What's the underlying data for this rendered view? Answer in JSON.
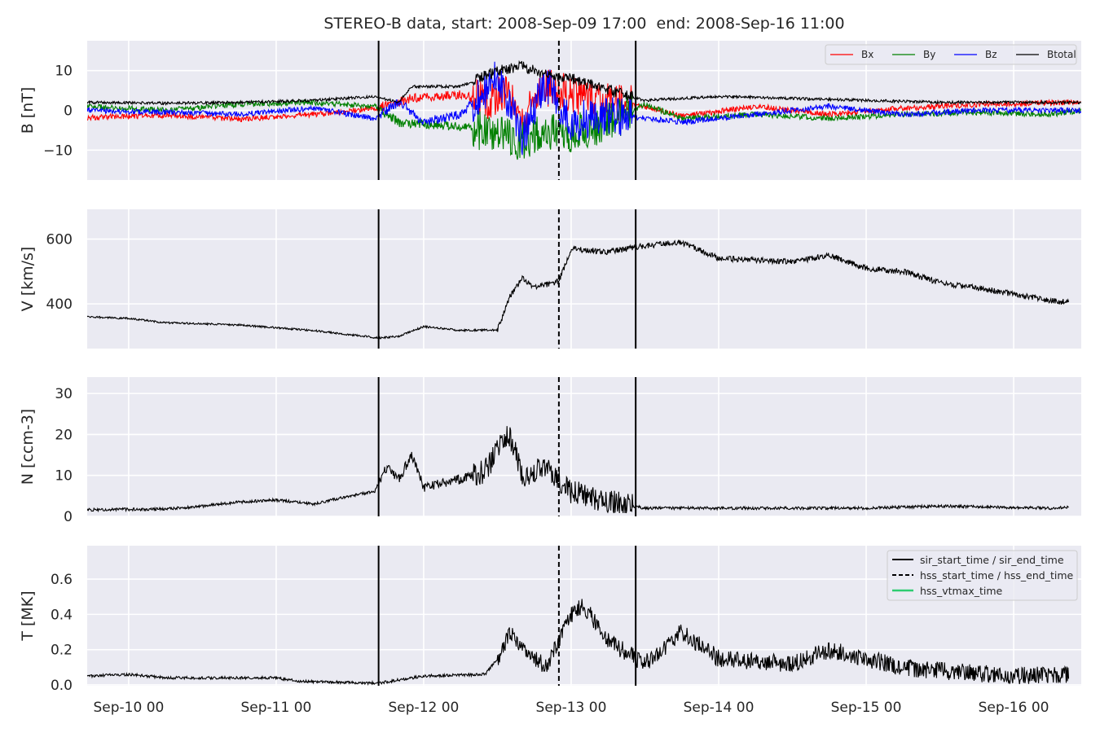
{
  "title": "STEREO-B data, start: 2008-Sep-09 17:00  end: 2008-Sep-16 11:00",
  "colors": {
    "panel_bg": "#eaeaf2",
    "grid": "#ffffff",
    "bx": "#ff0000",
    "by": "#008000",
    "bz": "#0000ff",
    "btotal": "#000000",
    "vtmax": "#2ecc71"
  },
  "chart_data": {
    "type": "line",
    "x_range": [
      "2008-09-09T17:15",
      "2008-09-16T11:00"
    ],
    "x_ticks": [
      {
        "t": "2008-09-10T00:00",
        "label": "Sep-10 00"
      },
      {
        "t": "2008-09-11T00:00",
        "label": "Sep-11 00"
      },
      {
        "t": "2008-09-12T00:00",
        "label": "Sep-12 00"
      },
      {
        "t": "2008-09-13T00:00",
        "label": "Sep-13 00"
      },
      {
        "t": "2008-09-14T00:00",
        "label": "Sep-14 00"
      },
      {
        "t": "2008-09-15T00:00",
        "label": "Sep-15 00"
      },
      {
        "t": "2008-09-16T00:00",
        "label": "Sep-16 00"
      }
    ],
    "event_lines": [
      {
        "t": "2008-09-11T16:40",
        "style": "solid"
      },
      {
        "t": "2008-09-12T22:00",
        "style": "dashed"
      },
      {
        "t": "2008-09-13T10:30",
        "style": "solid"
      }
    ],
    "panels": [
      {
        "id": "B",
        "ylabel": "B [nT]",
        "ylim": [
          -17.5,
          17.5
        ],
        "yticks": [
          -10,
          0,
          10
        ],
        "legend": {
          "placement": "top-right",
          "ncol": 4
        },
        "series": [
          {
            "name": "Bx",
            "color": "#ff0000",
            "points": [
              [
                "2008-09-09T17:15",
                -1.8
              ],
              [
                "2008-09-10T06:00",
                -1.2
              ],
              [
                "2008-09-10T18:00",
                -2.2
              ],
              [
                "2008-09-11T06:00",
                -1.0
              ],
              [
                "2008-09-11T16:00",
                0.5
              ],
              [
                "2008-09-11T22:00",
                3.0
              ],
              [
                "2008-09-12T06:00",
                4.0
              ],
              [
                "2008-09-12T10:00",
                2.0
              ],
              [
                "2008-09-12T13:00",
                5.0
              ],
              [
                "2008-09-12T16:00",
                -2.0
              ],
              [
                "2008-09-12T20:00",
                6.0
              ],
              [
                "2008-09-13T00:00",
                4.0
              ],
              [
                "2008-09-13T06:00",
                2.0
              ],
              [
                "2008-09-13T12:00",
                1.0
              ],
              [
                "2008-09-13T18:00",
                -1.5
              ],
              [
                "2008-09-14T06:00",
                1.0
              ],
              [
                "2008-09-14T18:00",
                -1.0
              ],
              [
                "2008-09-15T06:00",
                0.5
              ],
              [
                "2008-09-15T18:00",
                1.5
              ],
              [
                "2008-09-16T11:00",
                2.0
              ]
            ]
          },
          {
            "name": "By",
            "color": "#008000",
            "points": [
              [
                "2008-09-09T17:15",
                1.0
              ],
              [
                "2008-09-10T06:00",
                0.0
              ],
              [
                "2008-09-10T18:00",
                1.5
              ],
              [
                "2008-09-11T06:00",
                2.0
              ],
              [
                "2008-09-11T16:00",
                1.0
              ],
              [
                "2008-09-11T20:00",
                -3.0
              ],
              [
                "2008-09-12T06:00",
                -4.0
              ],
              [
                "2008-09-12T12:00",
                -6.0
              ],
              [
                "2008-09-12T16:00",
                -8.0
              ],
              [
                "2008-09-12T20:00",
                -5.0
              ],
              [
                "2008-09-13T00:00",
                -6.0
              ],
              [
                "2008-09-13T06:00",
                -3.0
              ],
              [
                "2008-09-13T12:00",
                1.5
              ],
              [
                "2008-09-13T18:00",
                -2.0
              ],
              [
                "2008-09-14T06:00",
                -1.0
              ],
              [
                "2008-09-14T18:00",
                -2.0
              ],
              [
                "2008-09-15T06:00",
                -1.0
              ],
              [
                "2008-09-15T18:00",
                -0.5
              ],
              [
                "2008-09-16T06:00",
                -1.0
              ],
              [
                "2008-09-16T11:00",
                0.0
              ]
            ]
          },
          {
            "name": "Bz",
            "color": "#0000ff",
            "points": [
              [
                "2008-09-09T17:15",
                0.0
              ],
              [
                "2008-09-10T06:00",
                -0.5
              ],
              [
                "2008-09-10T18:00",
                -1.0
              ],
              [
                "2008-09-11T06:00",
                0.5
              ],
              [
                "2008-09-11T16:00",
                -2.0
              ],
              [
                "2008-09-11T20:00",
                2.0
              ],
              [
                "2008-09-12T00:00",
                -3.0
              ],
              [
                "2008-09-12T06:00",
                -1.0
              ],
              [
                "2008-09-12T12:00",
                8.0
              ],
              [
                "2008-09-12T16:00",
                -7.0
              ],
              [
                "2008-09-12T20:00",
                7.0
              ],
              [
                "2008-09-13T00:00",
                -3.0
              ],
              [
                "2008-09-13T06:00",
                -1.0
              ],
              [
                "2008-09-13T12:00",
                -2.0
              ],
              [
                "2008-09-13T18:00",
                -3.0
              ],
              [
                "2008-09-14T06:00",
                -1.0
              ],
              [
                "2008-09-14T18:00",
                1.0
              ],
              [
                "2008-09-15T06:00",
                -1.0
              ],
              [
                "2008-09-15T18:00",
                0.0
              ],
              [
                "2008-09-16T11:00",
                0.0
              ]
            ]
          },
          {
            "name": "Btotal",
            "color": "#000000",
            "points": [
              [
                "2008-09-09T17:15",
                2.0
              ],
              [
                "2008-09-10T06:00",
                1.8
              ],
              [
                "2008-09-10T18:00",
                2.0
              ],
              [
                "2008-09-11T06:00",
                2.5
              ],
              [
                "2008-09-11T16:00",
                3.5
              ],
              [
                "2008-09-11T20:00",
                2.0
              ],
              [
                "2008-09-11T22:00",
                6.0
              ],
              [
                "2008-09-12T06:00",
                6.0
              ],
              [
                "2008-09-12T12:00",
                10.0
              ],
              [
                "2008-09-12T16:00",
                11.0
              ],
              [
                "2008-09-12T20:00",
                9.0
              ],
              [
                "2008-09-13T00:00",
                8.0
              ],
              [
                "2008-09-13T06:00",
                5.0
              ],
              [
                "2008-09-13T12:00",
                2.5
              ],
              [
                "2008-09-14T00:00",
                3.5
              ],
              [
                "2008-09-14T12:00",
                3.0
              ],
              [
                "2008-09-15T00:00",
                2.5
              ],
              [
                "2008-09-15T12:00",
                2.0
              ],
              [
                "2008-09-16T11:00",
                2.0
              ]
            ]
          }
        ]
      },
      {
        "id": "V",
        "ylabel": "V [km/s]",
        "ylim": [
          262,
          692
        ],
        "yticks": [
          400,
          600
        ],
        "series": [
          {
            "name": "",
            "color": "#000000",
            "points": [
              [
                "2008-09-09T17:15",
                360
              ],
              [
                "2008-09-10T00:00",
                355
              ],
              [
                "2008-09-10T06:00",
                342
              ],
              [
                "2008-09-10T18:00",
                335
              ],
              [
                "2008-09-11T06:00",
                318
              ],
              [
                "2008-09-11T12:00",
                305
              ],
              [
                "2008-09-11T16:40",
                295
              ],
              [
                "2008-09-11T20:00",
                300
              ],
              [
                "2008-09-12T00:00",
                330
              ],
              [
                "2008-09-12T06:00",
                318
              ],
              [
                "2008-09-12T12:00",
                320
              ],
              [
                "2008-09-12T14:00",
                420
              ],
              [
                "2008-09-12T16:00",
                480
              ],
              [
                "2008-09-12T18:00",
                450
              ],
              [
                "2008-09-12T22:00",
                470
              ],
              [
                "2008-09-13T00:00",
                570
              ],
              [
                "2008-09-13T06:00",
                560
              ],
              [
                "2008-09-13T12:00",
                580
              ],
              [
                "2008-09-13T18:00",
                590
              ],
              [
                "2008-09-14T00:00",
                540
              ],
              [
                "2008-09-14T12:00",
                530
              ],
              [
                "2008-09-14T18:00",
                550
              ],
              [
                "2008-09-15T00:00",
                510
              ],
              [
                "2008-09-15T06:00",
                500
              ],
              [
                "2008-09-15T12:00",
                465
              ],
              [
                "2008-09-15T18:00",
                450
              ],
              [
                "2008-09-16T00:00",
                430
              ],
              [
                "2008-09-16T06:00",
                410
              ],
              [
                "2008-09-16T09:00",
                405
              ]
            ]
          }
        ]
      },
      {
        "id": "N",
        "ylabel": "N [ccm-3]",
        "ylim": [
          0,
          34
        ],
        "yticks": [
          0,
          10,
          20,
          30
        ],
        "series": [
          {
            "name": "",
            "color": "#000000",
            "points": [
              [
                "2008-09-09T17:15",
                1.6
              ],
              [
                "2008-09-10T06:00",
                1.8
              ],
              [
                "2008-09-10T12:00",
                2.5
              ],
              [
                "2008-09-10T18:00",
                3.5
              ],
              [
                "2008-09-11T00:00",
                4.0
              ],
              [
                "2008-09-11T06:00",
                3.0
              ],
              [
                "2008-09-11T12:00",
                5.0
              ],
              [
                "2008-09-11T16:00",
                6.0
              ],
              [
                "2008-09-11T18:00",
                12.0
              ],
              [
                "2008-09-11T20:00",
                9.0
              ],
              [
                "2008-09-11T22:00",
                15.0
              ],
              [
                "2008-09-12T00:00",
                7.0
              ],
              [
                "2008-09-12T06:00",
                9.0
              ],
              [
                "2008-09-12T10:00",
                11.0
              ],
              [
                "2008-09-12T12:00",
                16.0
              ],
              [
                "2008-09-12T14:00",
                20.0
              ],
              [
                "2008-09-12T16:00",
                10.0
              ],
              [
                "2008-09-12T20:00",
                12.0
              ],
              [
                "2008-09-13T00:00",
                6.0
              ],
              [
                "2008-09-13T06:00",
                3.5
              ],
              [
                "2008-09-13T12:00",
                2.0
              ],
              [
                "2008-09-14T00:00",
                2.0
              ],
              [
                "2008-09-14T12:00",
                2.0
              ],
              [
                "2008-09-15T00:00",
                2.0
              ],
              [
                "2008-09-15T12:00",
                2.5
              ],
              [
                "2008-09-16T06:00",
                2.0
              ],
              [
                "2008-09-16T09:00",
                2.3
              ]
            ]
          }
        ]
      },
      {
        "id": "T",
        "ylabel": "T [MK]",
        "ylim": [
          -0.005,
          0.79
        ],
        "yticks": [
          0.0,
          0.2,
          0.4,
          0.6
        ],
        "legend": {
          "placement": "top-right",
          "entries": [
            {
              "label": "sir_start_time / sir_end_time",
              "style": "solid",
              "color": "#000000"
            },
            {
              "label": "hss_start_time / hss_end_time",
              "style": "dashed",
              "color": "#000000"
            },
            {
              "label": "hss_vtmax_time",
              "style": "solid",
              "color": "#2ecc71"
            }
          ]
        },
        "series": [
          {
            "name": "",
            "color": "#000000",
            "points": [
              [
                "2008-09-09T17:15",
                0.05
              ],
              [
                "2008-09-10T00:00",
                0.06
              ],
              [
                "2008-09-10T06:00",
                0.04
              ],
              [
                "2008-09-11T00:00",
                0.04
              ],
              [
                "2008-09-11T04:00",
                0.02
              ],
              [
                "2008-09-11T16:40",
                0.01
              ],
              [
                "2008-09-12T00:00",
                0.05
              ],
              [
                "2008-09-12T10:00",
                0.06
              ],
              [
                "2008-09-12T12:00",
                0.15
              ],
              [
                "2008-09-12T14:00",
                0.3
              ],
              [
                "2008-09-12T16:00",
                0.2
              ],
              [
                "2008-09-12T20:00",
                0.1
              ],
              [
                "2008-09-13T00:00",
                0.4
              ],
              [
                "2008-09-13T02:00",
                0.45
              ],
              [
                "2008-09-13T06:00",
                0.25
              ],
              [
                "2008-09-13T12:00",
                0.12
              ],
              [
                "2008-09-13T18:00",
                0.3
              ],
              [
                "2008-09-14T00:00",
                0.15
              ],
              [
                "2008-09-14T12:00",
                0.12
              ],
              [
                "2008-09-14T18:00",
                0.2
              ],
              [
                "2008-09-15T00:00",
                0.15
              ],
              [
                "2008-09-15T06:00",
                0.1
              ],
              [
                "2008-09-15T12:00",
                0.08
              ],
              [
                "2008-09-16T00:00",
                0.05
              ],
              [
                "2008-09-16T09:00",
                0.06
              ]
            ]
          }
        ]
      }
    ]
  }
}
